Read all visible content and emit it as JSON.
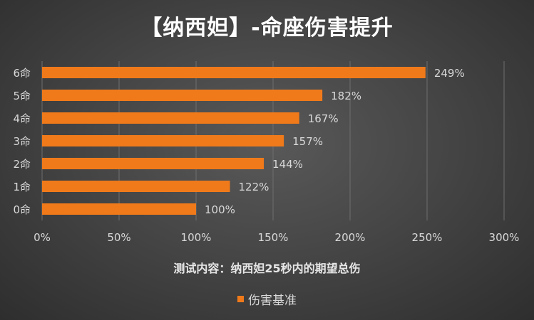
{
  "chart_data": {
    "type": "bar",
    "orientation": "horizontal",
    "title": "【纳西妲】-命座伤害提升",
    "xlabel": "测试内容：纳西妲25秒内的期望总伤",
    "categories": [
      "0命",
      "1命",
      "2命",
      "3命",
      "4命",
      "5命",
      "6命"
    ],
    "series": [
      {
        "name": "伤害基准",
        "values": [
          100,
          122,
          144,
          157,
          167,
          182,
          249
        ],
        "labels": [
          "100%",
          "122%",
          "144%",
          "157%",
          "167%",
          "182%",
          "249%"
        ]
      }
    ],
    "xlim": [
      0,
      300
    ],
    "xticks": [
      "0%",
      "50%",
      "100%",
      "150%",
      "200%",
      "250%",
      "300%"
    ],
    "grid": "vertical",
    "legend": "bottom",
    "colors": {
      "bar": "#f07a1a",
      "grid": "#6e6e6e",
      "tick_text": "#d9d9d9"
    }
  }
}
